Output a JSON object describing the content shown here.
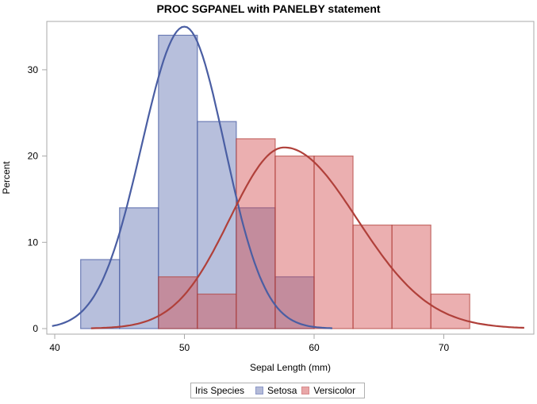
{
  "title": "PROC SGPANEL with PANELBY statement",
  "legend": {
    "title": "Iris Species",
    "items": [
      {
        "label": "Setosa",
        "color": "#b4bbd8",
        "border": "#6f80b8"
      },
      {
        "label": "Versicolor",
        "color": "#e8a7a8",
        "border": "#c86466"
      }
    ]
  },
  "axes": {
    "xlabel": "Sepal Length (mm)",
    "ylabel": "Percent",
    "xticks": [
      "40",
      "50",
      "60",
      "70"
    ],
    "yticks": [
      "0",
      "10",
      "20",
      "30"
    ]
  },
  "chart_data": {
    "type": "bar",
    "title": "PROC SGPANEL with PANELBY statement",
    "xlabel": "Sepal Length (mm)",
    "ylabel": "Percent",
    "xlim": [
      39,
      77
    ],
    "ylim": [
      0,
      35.5
    ],
    "x_ticks": [
      40,
      50,
      60,
      70
    ],
    "y_ticks": [
      0,
      10,
      20,
      30
    ],
    "bin_width": 3,
    "legend_title": "Iris Species",
    "legend_position": "bottom",
    "grid": false,
    "series": [
      {
        "name": "Setosa",
        "color": "#4a5ea3",
        "bins": [
          [
            42,
            45
          ],
          [
            45,
            48
          ],
          [
            48,
            51
          ],
          [
            51,
            54
          ],
          [
            54,
            57
          ],
          [
            57,
            60
          ]
        ],
        "values": [
          8,
          14,
          34,
          24,
          14,
          6
        ],
        "density_curve_peak": {
          "x": 50,
          "y": 35
        }
      },
      {
        "name": "Versicolor",
        "color": "#b0403a",
        "bins": [
          [
            48,
            51
          ],
          [
            51,
            54
          ],
          [
            54,
            57
          ],
          [
            57,
            60
          ],
          [
            60,
            63
          ],
          [
            63,
            66
          ],
          [
            66,
            69
          ],
          [
            69,
            72
          ]
        ],
        "values": [
          6,
          4,
          22,
          20,
          20,
          12,
          12,
          4
        ],
        "density_curve_peak": {
          "x": 57.7,
          "y": 21
        }
      }
    ]
  }
}
